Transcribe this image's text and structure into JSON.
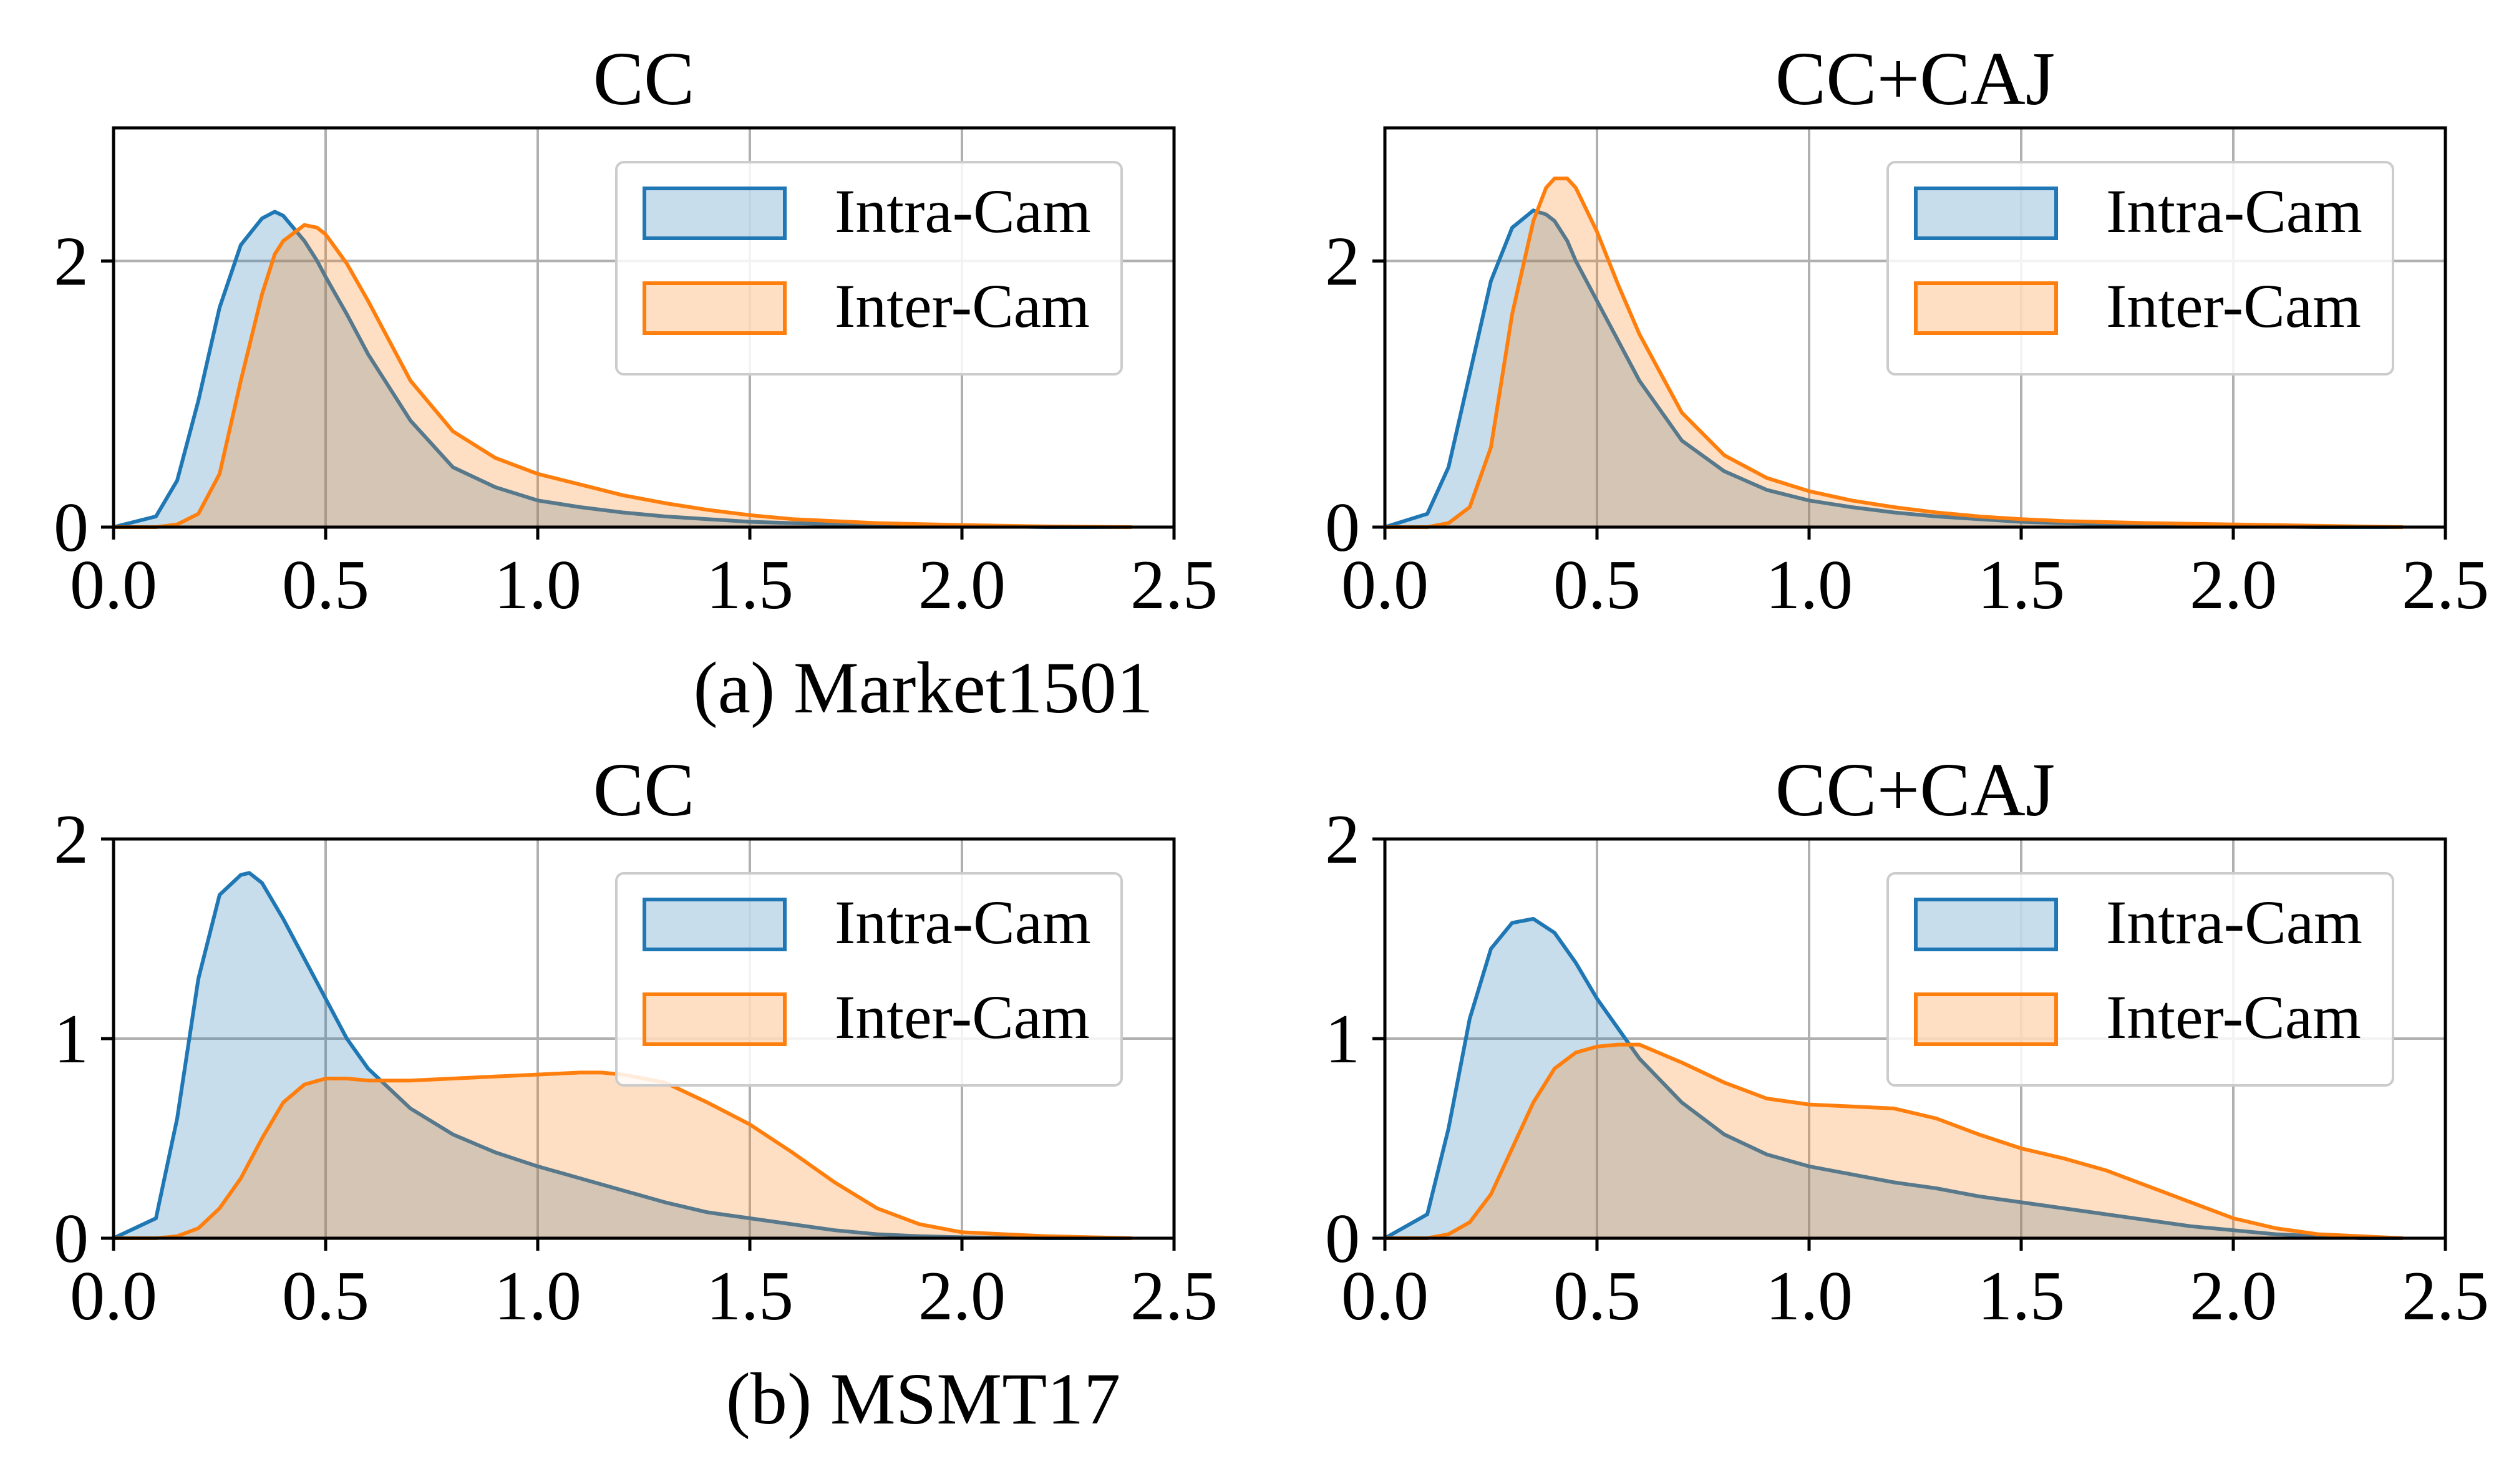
{
  "colors": {
    "intra": "#1f77b4",
    "inter": "#ff7f0e",
    "grid": "#b0b0b0",
    "axis": "#000000"
  },
  "captions": {
    "row1": "(a) Market1501",
    "row2": "(b) MSMT17"
  },
  "chart_data": [
    {
      "type": "area",
      "title": "CC",
      "xlabel": "",
      "ylabel": "",
      "xlim": [
        0.0,
        2.5
      ],
      "ylim": [
        0,
        3
      ],
      "x_ticks": [
        "0.0",
        "0.5",
        "1.0",
        "1.5",
        "2.0",
        "2.5"
      ],
      "y_ticks": [
        "0",
        "2"
      ],
      "grid": true,
      "legend": "top-right",
      "legend_labels": [
        "Intra-Cam",
        "Inter-Cam"
      ],
      "x": [
        0.0,
        0.1,
        0.15,
        0.2,
        0.25,
        0.3,
        0.35,
        0.38,
        0.4,
        0.45,
        0.48,
        0.5,
        0.55,
        0.6,
        0.7,
        0.8,
        0.9,
        1.0,
        1.1,
        1.2,
        1.3,
        1.4,
        1.5,
        1.6,
        1.8,
        2.0,
        2.2,
        2.4
      ],
      "series": [
        {
          "name": "Intra-Cam",
          "values": [
            0.0,
            0.08,
            0.35,
            0.95,
            1.65,
            2.12,
            2.32,
            2.37,
            2.34,
            2.15,
            2.0,
            1.88,
            1.6,
            1.3,
            0.8,
            0.45,
            0.3,
            0.2,
            0.15,
            0.11,
            0.08,
            0.06,
            0.04,
            0.03,
            0.015,
            0.008,
            0.0,
            0.0
          ]
        },
        {
          "name": "Inter-Cam",
          "values": [
            0.0,
            0.0,
            0.02,
            0.1,
            0.4,
            1.1,
            1.75,
            2.05,
            2.15,
            2.27,
            2.25,
            2.2,
            1.98,
            1.7,
            1.1,
            0.72,
            0.52,
            0.4,
            0.32,
            0.24,
            0.18,
            0.13,
            0.09,
            0.06,
            0.03,
            0.015,
            0.005,
            0.0
          ]
        }
      ]
    },
    {
      "type": "area",
      "title": "CC+CAJ",
      "xlabel": "",
      "ylabel": "",
      "xlim": [
        0.0,
        2.5
      ],
      "ylim": [
        0,
        3
      ],
      "x_ticks": [
        "0.0",
        "0.5",
        "1.0",
        "1.5",
        "2.0",
        "2.5"
      ],
      "y_ticks": [
        "0",
        "2"
      ],
      "grid": true,
      "legend": "top-right",
      "legend_labels": [
        "Intra-Cam",
        "Inter-Cam"
      ],
      "x": [
        0.0,
        0.1,
        0.15,
        0.2,
        0.25,
        0.3,
        0.35,
        0.38,
        0.4,
        0.43,
        0.45,
        0.5,
        0.55,
        0.6,
        0.7,
        0.8,
        0.9,
        1.0,
        1.1,
        1.2,
        1.3,
        1.4,
        1.5,
        1.6,
        1.8,
        2.0,
        2.2,
        2.4
      ],
      "series": [
        {
          "name": "Intra-Cam",
          "values": [
            0.0,
            0.1,
            0.45,
            1.15,
            1.85,
            2.25,
            2.38,
            2.35,
            2.3,
            2.15,
            2.0,
            1.7,
            1.4,
            1.1,
            0.65,
            0.42,
            0.28,
            0.2,
            0.15,
            0.11,
            0.08,
            0.06,
            0.04,
            0.03,
            0.015,
            0.008,
            0.0,
            0.0
          ]
        },
        {
          "name": "Inter-Cam",
          "values": [
            0.0,
            0.0,
            0.03,
            0.15,
            0.6,
            1.6,
            2.3,
            2.55,
            2.62,
            2.62,
            2.55,
            2.22,
            1.82,
            1.45,
            0.86,
            0.54,
            0.37,
            0.27,
            0.2,
            0.15,
            0.11,
            0.08,
            0.06,
            0.045,
            0.03,
            0.02,
            0.01,
            0.0
          ]
        }
      ]
    },
    {
      "type": "area",
      "title": "CC",
      "xlabel": "",
      "ylabel": "",
      "xlim": [
        0.0,
        2.5
      ],
      "ylim": [
        0,
        2
      ],
      "x_ticks": [
        "0.0",
        "0.5",
        "1.0",
        "1.5",
        "2.0",
        "2.5"
      ],
      "y_ticks": [
        "0",
        "1",
        "2"
      ],
      "grid": true,
      "legend": "top-right",
      "legend_labels": [
        "Intra-Cam",
        "Inter-Cam"
      ],
      "x": [
        0.0,
        0.1,
        0.15,
        0.2,
        0.25,
        0.3,
        0.32,
        0.35,
        0.4,
        0.45,
        0.5,
        0.55,
        0.6,
        0.7,
        0.8,
        0.9,
        1.0,
        1.1,
        1.15,
        1.2,
        1.3,
        1.4,
        1.5,
        1.6,
        1.7,
        1.8,
        1.9,
        2.0,
        2.2,
        2.4
      ],
      "series": [
        {
          "name": "Intra-Cam",
          "values": [
            0.0,
            0.1,
            0.6,
            1.3,
            1.72,
            1.82,
            1.83,
            1.78,
            1.6,
            1.4,
            1.2,
            1.0,
            0.85,
            0.65,
            0.52,
            0.43,
            0.36,
            0.3,
            0.27,
            0.24,
            0.18,
            0.13,
            0.1,
            0.07,
            0.04,
            0.02,
            0.01,
            0.005,
            0.0,
            0.0
          ]
        },
        {
          "name": "Inter-Cam",
          "values": [
            0.0,
            0.0,
            0.01,
            0.05,
            0.15,
            0.3,
            0.38,
            0.5,
            0.68,
            0.77,
            0.8,
            0.8,
            0.79,
            0.79,
            0.8,
            0.81,
            0.82,
            0.83,
            0.83,
            0.82,
            0.78,
            0.68,
            0.57,
            0.43,
            0.28,
            0.15,
            0.07,
            0.03,
            0.01,
            0.0
          ]
        }
      ]
    },
    {
      "type": "area",
      "title": "CC+CAJ",
      "xlabel": "",
      "ylabel": "",
      "xlim": [
        0.0,
        2.5
      ],
      "ylim": [
        0,
        2
      ],
      "x_ticks": [
        "0.0",
        "0.5",
        "1.0",
        "1.5",
        "2.0",
        "2.5"
      ],
      "y_ticks": [
        "0",
        "1",
        "2"
      ],
      "grid": true,
      "legend": "top-right",
      "legend_labels": [
        "Intra-Cam",
        "Inter-Cam"
      ],
      "x": [
        0.0,
        0.1,
        0.15,
        0.2,
        0.25,
        0.3,
        0.35,
        0.4,
        0.45,
        0.5,
        0.55,
        0.6,
        0.7,
        0.8,
        0.9,
        1.0,
        1.1,
        1.2,
        1.3,
        1.4,
        1.5,
        1.6,
        1.7,
        1.8,
        1.9,
        2.0,
        2.1,
        2.2,
        2.3,
        2.4
      ],
      "series": [
        {
          "name": "Intra-Cam",
          "values": [
            0.0,
            0.12,
            0.55,
            1.1,
            1.45,
            1.58,
            1.6,
            1.53,
            1.38,
            1.2,
            1.05,
            0.9,
            0.68,
            0.52,
            0.42,
            0.36,
            0.32,
            0.28,
            0.25,
            0.21,
            0.18,
            0.15,
            0.12,
            0.09,
            0.06,
            0.04,
            0.02,
            0.01,
            0.0,
            0.0
          ]
        },
        {
          "name": "Inter-Cam",
          "values": [
            0.0,
            0.0,
            0.02,
            0.08,
            0.22,
            0.45,
            0.68,
            0.85,
            0.93,
            0.96,
            0.97,
            0.97,
            0.88,
            0.78,
            0.7,
            0.67,
            0.66,
            0.65,
            0.6,
            0.52,
            0.45,
            0.4,
            0.34,
            0.26,
            0.18,
            0.1,
            0.05,
            0.02,
            0.01,
            0.0
          ]
        }
      ]
    }
  ]
}
